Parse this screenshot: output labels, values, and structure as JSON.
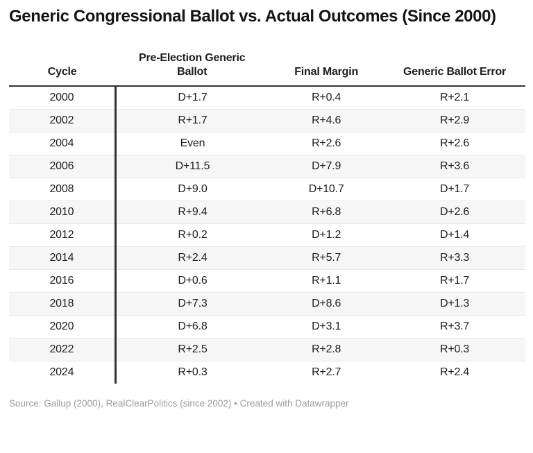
{
  "title": "Generic Congressional Ballot vs. Actual Outcomes (Since 2000)",
  "chart_data": {
    "type": "table",
    "title": "Generic Congressional Ballot vs. Actual Outcomes (Since 2000)",
    "columns": [
      "Cycle",
      "Pre-Election Generic Ballot",
      "Final Margin",
      "Generic Ballot Error"
    ],
    "rows": [
      [
        "2000",
        "D+1.7",
        "R+0.4",
        "R+2.1"
      ],
      [
        "2002",
        "R+1.7",
        "R+4.6",
        "R+2.9"
      ],
      [
        "2004",
        "Even",
        "R+2.6",
        "R+2.6"
      ],
      [
        "2006",
        "D+11.5",
        "D+7.9",
        "R+3.6"
      ],
      [
        "2008",
        "D+9.0",
        "D+10.7",
        "D+1.7"
      ],
      [
        "2010",
        "R+9.4",
        "R+6.8",
        "D+2.6"
      ],
      [
        "2012",
        "R+0.2",
        "D+1.2",
        "D+1.4"
      ],
      [
        "2014",
        "R+2.4",
        "R+5.7",
        "R+3.3"
      ],
      [
        "2016",
        "D+0.6",
        "R+1.1",
        "R+1.7"
      ],
      [
        "2018",
        "D+7.3",
        "D+8.6",
        "D+1.3"
      ],
      [
        "2020",
        "D+6.8",
        "D+3.1",
        "R+3.7"
      ],
      [
        "2022",
        "R+2.5",
        "R+2.8",
        "R+0.3"
      ],
      [
        "2024",
        "R+0.3",
        "R+2.7",
        "R+2.4"
      ]
    ],
    "striped_row_indexes": [
      1,
      3,
      5,
      7,
      9,
      11
    ],
    "layout_hints": {
      "column_alignment": "center",
      "header_rule": true,
      "cycle_column_divider_bar": true,
      "row_striping": "alternating"
    }
  },
  "footer": {
    "source_text": "Source: Gallup (2000), RealClearPolitics (since 2002)",
    "separator": "•",
    "credit_text": "Created with Datawrapper"
  },
  "colors": {
    "background": "#ffffff",
    "title_text": "#151515",
    "body_text": "#1d1d1d",
    "rule_dark": "#333333",
    "row_stripe": "#f6f6f6",
    "row_divider": "#e9e9e9",
    "footer_text": "#9b9b9b"
  }
}
